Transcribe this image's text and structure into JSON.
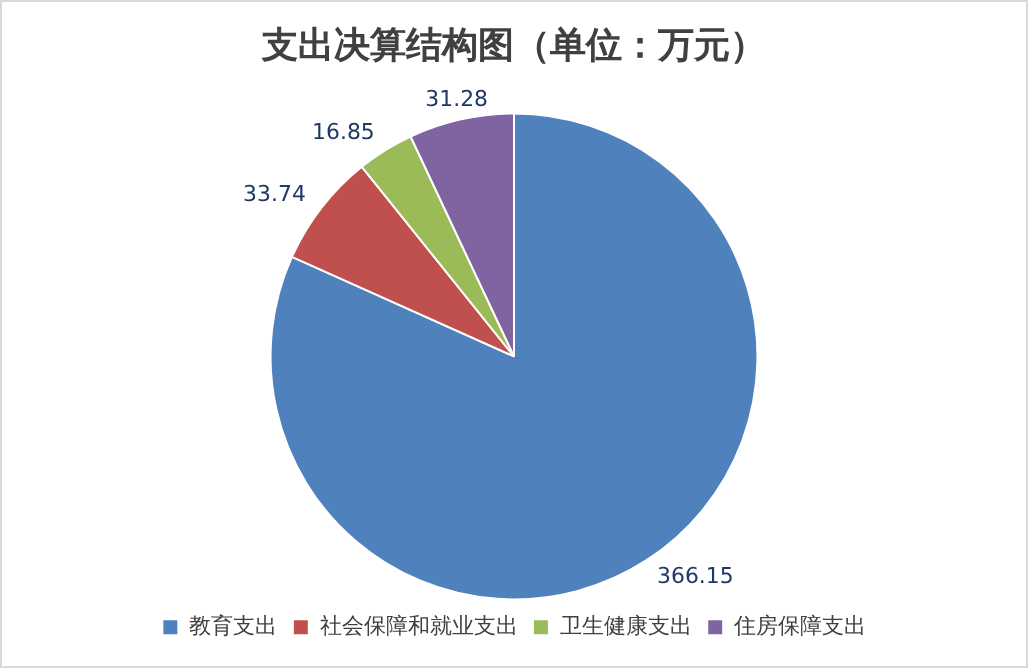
{
  "chart_data": {
    "type": "pie",
    "title": "支出决算结构图（单位：万元）",
    "categories": [
      "教育支出",
      "社会保障和就业支出",
      "卫生健康支出",
      "住房保障支出"
    ],
    "values": [
      366.15,
      33.74,
      16.85,
      31.28
    ],
    "colors": [
      "#4f81bd",
      "#c0504d",
      "#9bbb59",
      "#8064a2"
    ],
    "data_labels": true,
    "legend": "bottom"
  }
}
